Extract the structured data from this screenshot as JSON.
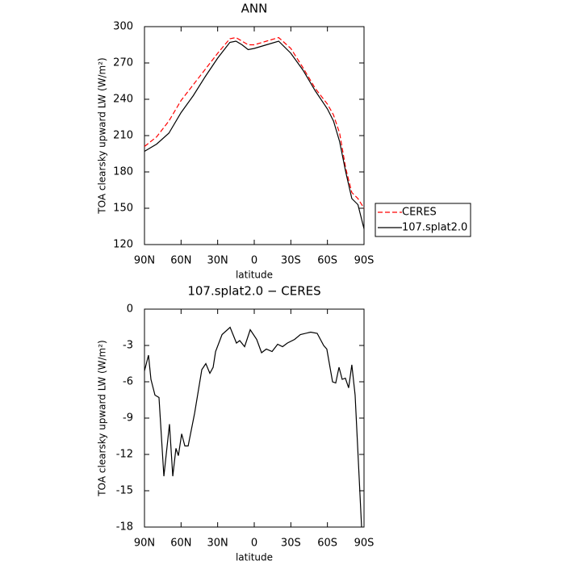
{
  "chart_data": [
    {
      "type": "line",
      "title": "ANN",
      "xlabel": "latitude",
      "ylabel": "TOA clearsky upward LW (W/m²)",
      "x": [
        90,
        80,
        70,
        60,
        50,
        40,
        30,
        20,
        15,
        10,
        5,
        0,
        -10,
        -20,
        -30,
        -40,
        -50,
        -60,
        -65,
        -70,
        -75,
        -80,
        -85,
        -90
      ],
      "series": [
        {
          "name": "CERES",
          "color": "#ff0000",
          "linestyle": "dashed",
          "values": [
            201,
            209,
            222,
            239,
            252,
            265,
            278,
            290,
            291,
            288,
            285,
            285,
            288,
            291,
            282,
            266,
            249,
            236,
            227,
            212,
            183,
            163,
            158,
            150
          ]
        },
        {
          "name": "107.splat2.0",
          "color": "#000000",
          "linestyle": "solid",
          "values": [
            197,
            203,
            212,
            229,
            243,
            259,
            274,
            287,
            288,
            285,
            281,
            282,
            285,
            288,
            278,
            264,
            247,
            232,
            222,
            205,
            180,
            158,
            153,
            133
          ]
        }
      ],
      "xlim": [
        90,
        -90
      ],
      "xticks": [
        {
          "value": 90,
          "label": "90N"
        },
        {
          "value": 60,
          "label": "60N"
        },
        {
          "value": 30,
          "label": "30N"
        },
        0,
        {
          "value": -30,
          "label": "30S"
        },
        {
          "value": -60,
          "label": "60S"
        },
        {
          "value": -90,
          "label": "90S"
        }
      ],
      "ylim": [
        120,
        300
      ],
      "yticks": [
        120,
        150,
        180,
        210,
        240,
        270,
        300
      ],
      "legend": "right"
    },
    {
      "type": "line",
      "title": "107.splat2.0 − CERES",
      "xlabel": "latitude",
      "ylabel": "TOA clearsky upward LW (W/m²)",
      "x": [
        90,
        86.7,
        84.7,
        81.4,
        78.1,
        74.1,
        69.5,
        66.8,
        64.2,
        62.2,
        59.5,
        56.9,
        54.2,
        48.9,
        43,
        39.7,
        36.4,
        33.7,
        31.7,
        26.4,
        19.8,
        14.6,
        11.9,
        7.9,
        3.3,
        -2,
        -6,
        -9.9,
        -14.6,
        -19.2,
        -23.2,
        -27.2,
        -33.1,
        -37.8,
        -46.3,
        -51.6,
        -56.9,
        -59.5,
        -64.2,
        -66.8,
        -69.5,
        -72.1,
        -74.7,
        -77.4,
        -80,
        -82.7,
        -88
      ],
      "series": [
        {
          "name": "107.splat2.0 − CERES",
          "color": "#000000",
          "linestyle": "solid",
          "values": [
            -5.1,
            -3.8,
            -5.8,
            -7.1,
            -7.3,
            -13.8,
            -9.5,
            -13.8,
            -11.5,
            -12.1,
            -10.3,
            -11.3,
            -11.3,
            -8.6,
            -5,
            -4.5,
            -5.3,
            -4.8,
            -3.5,
            -2.1,
            -1.5,
            -2.8,
            -2.6,
            -3.1,
            -1.7,
            -2.5,
            -3.6,
            -3.3,
            -3.5,
            -2.9,
            -3.1,
            -2.8,
            -2.5,
            -2.1,
            -1.9,
            -2,
            -3,
            -3.3,
            -6,
            -6.1,
            -4.8,
            -5.8,
            -5.7,
            -6.5,
            -4.6,
            -7.1,
            -18
          ]
        }
      ],
      "xlim": [
        90,
        -90
      ],
      "xticks": [
        {
          "value": 90,
          "label": "90N"
        },
        {
          "value": 60,
          "label": "60N"
        },
        {
          "value": 30,
          "label": "30N"
        },
        0,
        {
          "value": -30,
          "label": "30S"
        },
        {
          "value": -60,
          "label": "60S"
        },
        {
          "value": -90,
          "label": "90S"
        }
      ],
      "ylim": [
        -18,
        0
      ],
      "yticks": [
        -18,
        -15,
        -12,
        -9,
        -6,
        -3,
        0
      ],
      "legend": "none"
    }
  ]
}
